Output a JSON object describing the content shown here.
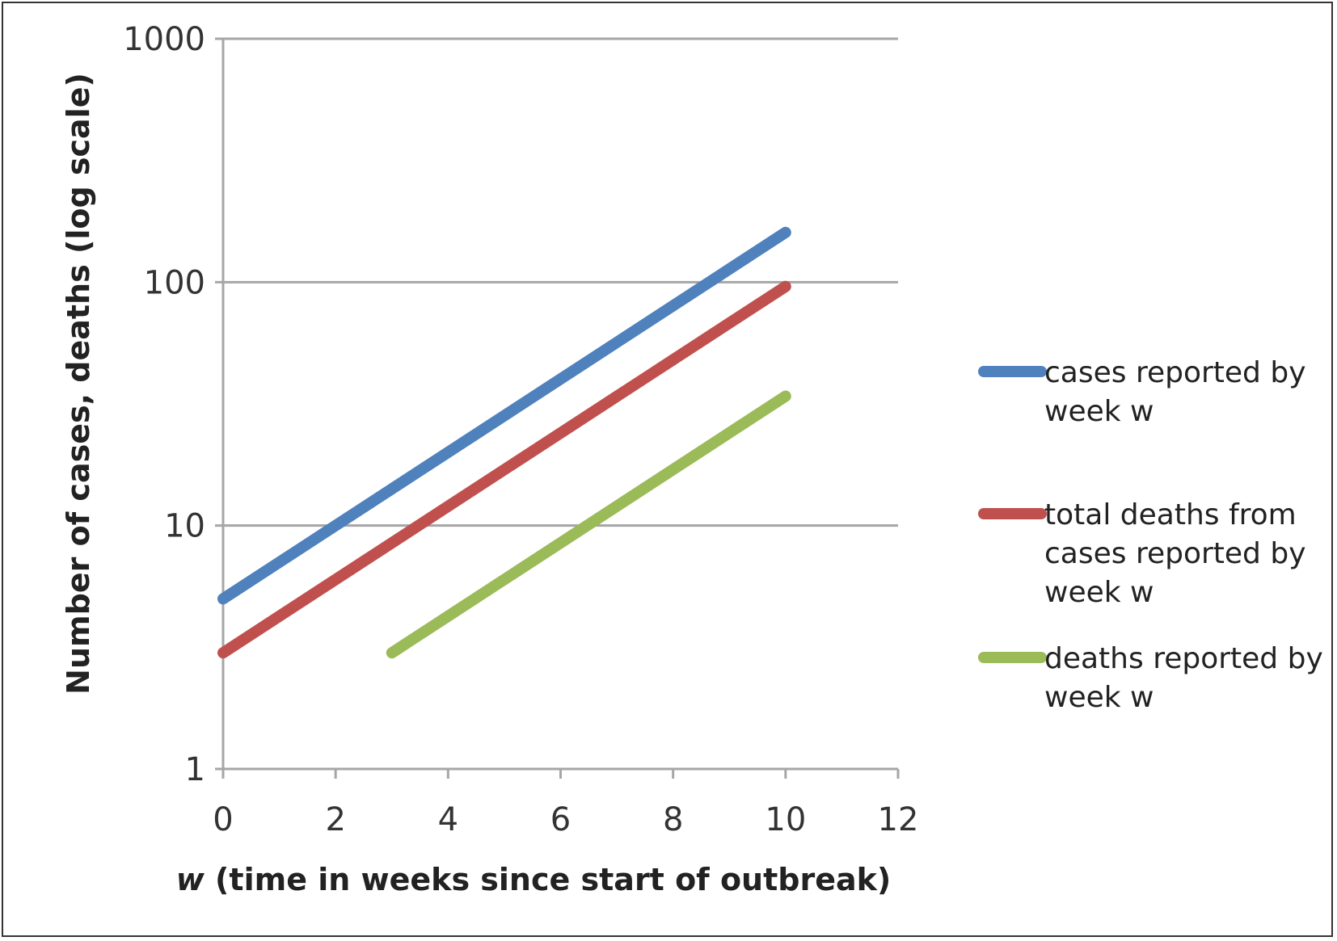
{
  "chart_data": {
    "type": "line",
    "title": "",
    "xlabel_var": "w",
    "xlabel_rest": " (time in weeks since start of outbreak)",
    "ylabel": "Number of cases, deaths (log scale)",
    "xlim": [
      0,
      12
    ],
    "ylim": [
      1,
      1000
    ],
    "y_scale": "log",
    "x_ticks": [
      0,
      2,
      4,
      6,
      8,
      10,
      12
    ],
    "x_tick_labels": [
      "0",
      "2",
      "4",
      "6",
      "8",
      "10",
      "12"
    ],
    "y_ticks": [
      1,
      10,
      100,
      1000
    ],
    "y_tick_labels": [
      "1",
      "10",
      "100",
      "1000"
    ],
    "grid": "horizontal major gridlines",
    "legend_position": "right",
    "series": [
      {
        "name": "cases reported by week w",
        "legend_lines": [
          "cases reported by",
          "week w"
        ],
        "color": "#4F81BD",
        "x": [
          0,
          10
        ],
        "y": [
          5,
          160
        ]
      },
      {
        "name": "total deaths from cases reported by week w",
        "legend_lines": [
          "total deaths from",
          "cases reported by",
          "week w"
        ],
        "color": "#C0504D",
        "x": [
          0,
          10
        ],
        "y": [
          3,
          96
        ]
      },
      {
        "name": "deaths reported by week w",
        "legend_lines": [
          "deaths reported by",
          "week w"
        ],
        "color": "#9BBB59",
        "x": [
          3,
          10
        ],
        "y": [
          3,
          34
        ]
      }
    ]
  }
}
